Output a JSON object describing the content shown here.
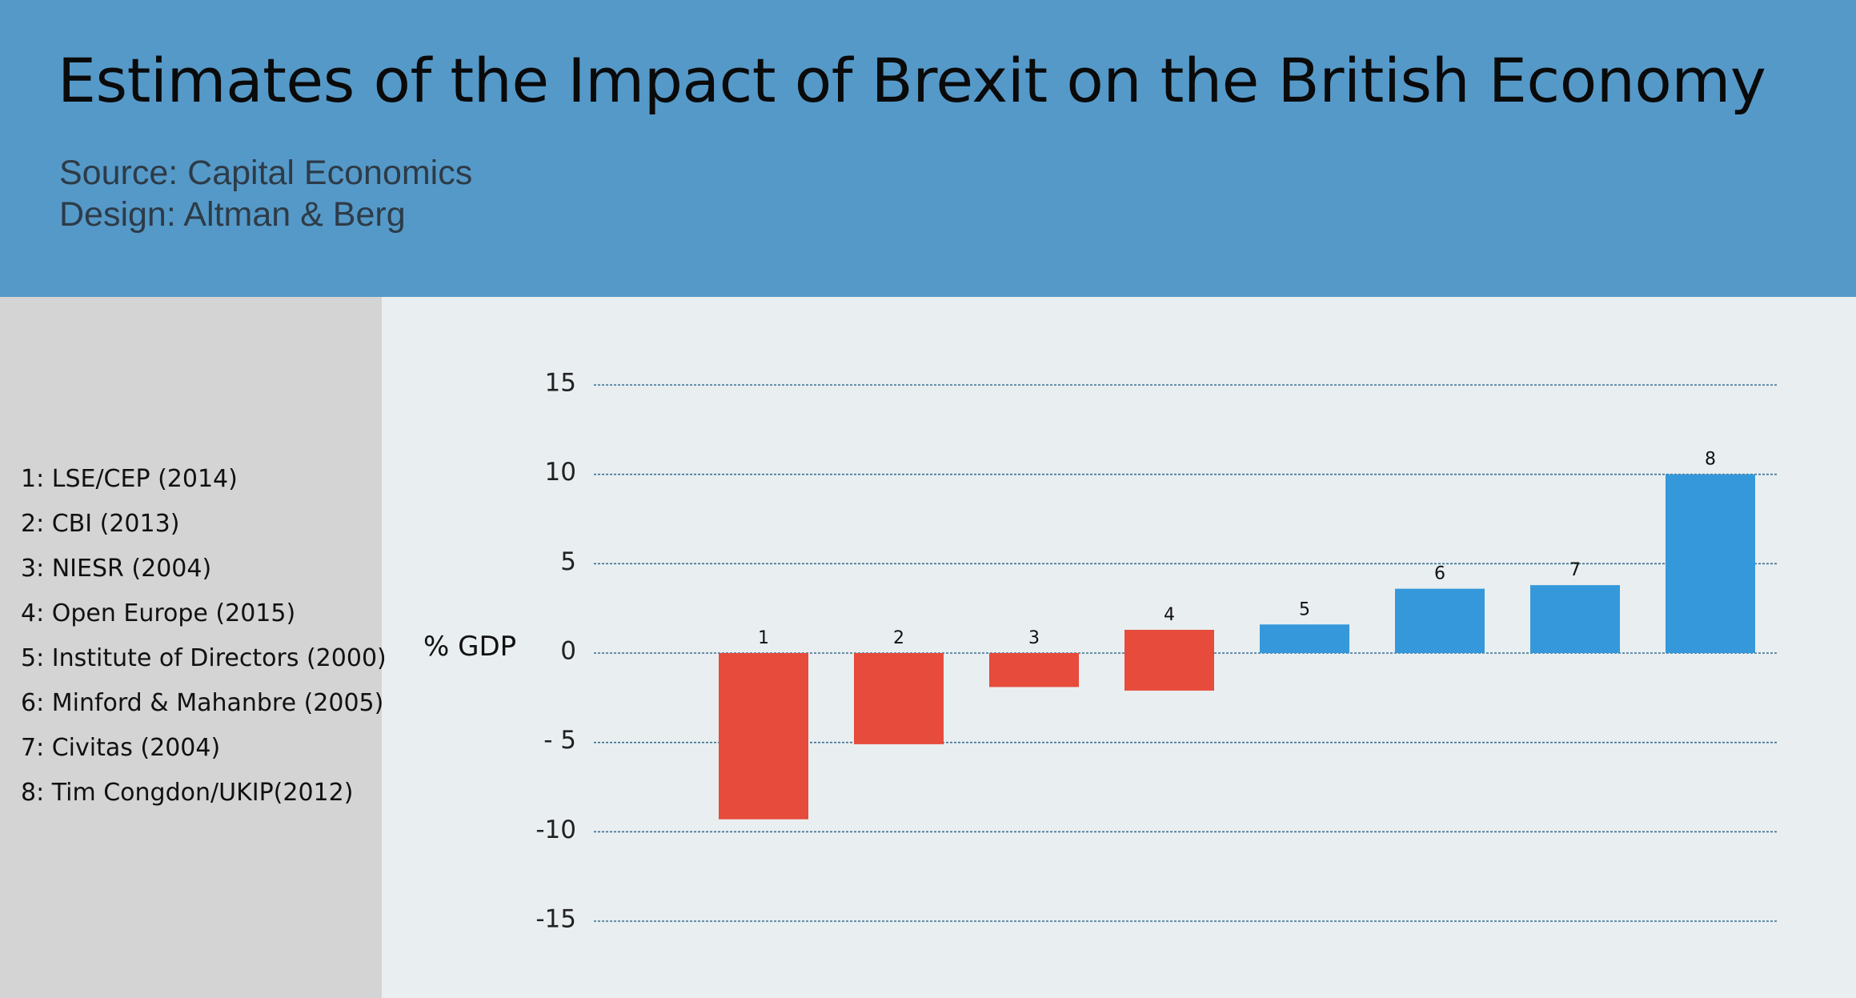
{
  "title": "Estimates of the Impact of Brexit on the British Economy",
  "source": "Source: Capital Economics",
  "design": "Design: Altman & Berg",
  "legend": [
    "1: LSE/CEP (2014)",
    "2: CBI (2013)",
    "3: NIESR (2004)",
    "4: Open Europe (2015)",
    "5: Institute of Directors (2000)",
    "6: Minford & Mahanbre (2005)",
    "7: Civitas (2004)",
    "8: Tim Congdon/UKIP(2012)"
  ],
  "colors": {
    "header": "#5599c8",
    "sidebar": "#d4d4d4",
    "plot_bg": "#e9eef0",
    "negative": "#e64b3c",
    "positive": "#3498db",
    "grid": "#3b6e8f"
  },
  "chart_data": {
    "type": "bar",
    "categories": [
      "1",
      "2",
      "3",
      "4",
      "5",
      "6",
      "7",
      "8"
    ],
    "values": [
      -9.3,
      -5.1,
      -1.9,
      -2.1,
      1.6,
      3.6,
      3.8,
      10.0
    ],
    "label_values": [
      null,
      null,
      null,
      1.3,
      null,
      null,
      null,
      null
    ],
    "ylabel": "% GDP",
    "ylim": [
      -15,
      15
    ],
    "yticks": [
      15,
      10,
      5,
      0,
      -5,
      -10,
      -15
    ],
    "ytick_labels": [
      "15",
      "10",
      "5",
      "0",
      "- 5",
      "-10",
      "-15"
    ],
    "grid": true,
    "legend_position": "left"
  }
}
